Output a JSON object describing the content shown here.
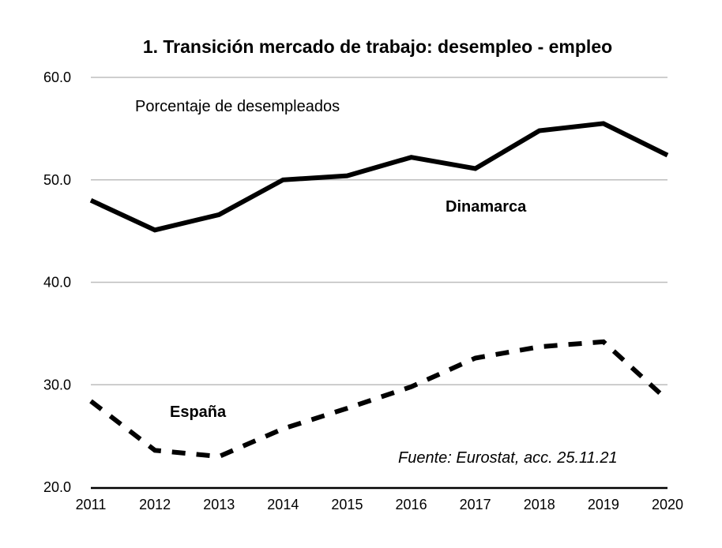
{
  "chart_data": {
    "type": "line",
    "title": "1. Transición mercado de trabajo: desempleo - empleo",
    "subtitle": "Porcentaje de desempleados",
    "source_note": "Fuente: Eurostat, acc. 25.11.21",
    "xlabel": "",
    "ylabel": "",
    "x": [
      "2011",
      "2012",
      "2013",
      "2014",
      "2015",
      "2016",
      "2017",
      "2018",
      "2019",
      "2020"
    ],
    "ylim": [
      20,
      60
    ],
    "yticks": [
      "20.0",
      "30.0",
      "40.0",
      "50.0",
      "60.0"
    ],
    "ytick_values": [
      20,
      30,
      40,
      50,
      60
    ],
    "grid": true,
    "series": [
      {
        "name": "Dinamarca",
        "style": "solid",
        "color": "#000000",
        "values": [
          48.0,
          45.1,
          46.6,
          50.0,
          50.4,
          52.2,
          51.1,
          54.8,
          55.5,
          52.4
        ]
      },
      {
        "name": "España",
        "style": "dashed",
        "color": "#000000",
        "values": [
          28.4,
          23.6,
          23.0,
          25.7,
          27.7,
          29.8,
          32.6,
          33.7,
          34.2,
          28.5
        ]
      }
    ]
  }
}
